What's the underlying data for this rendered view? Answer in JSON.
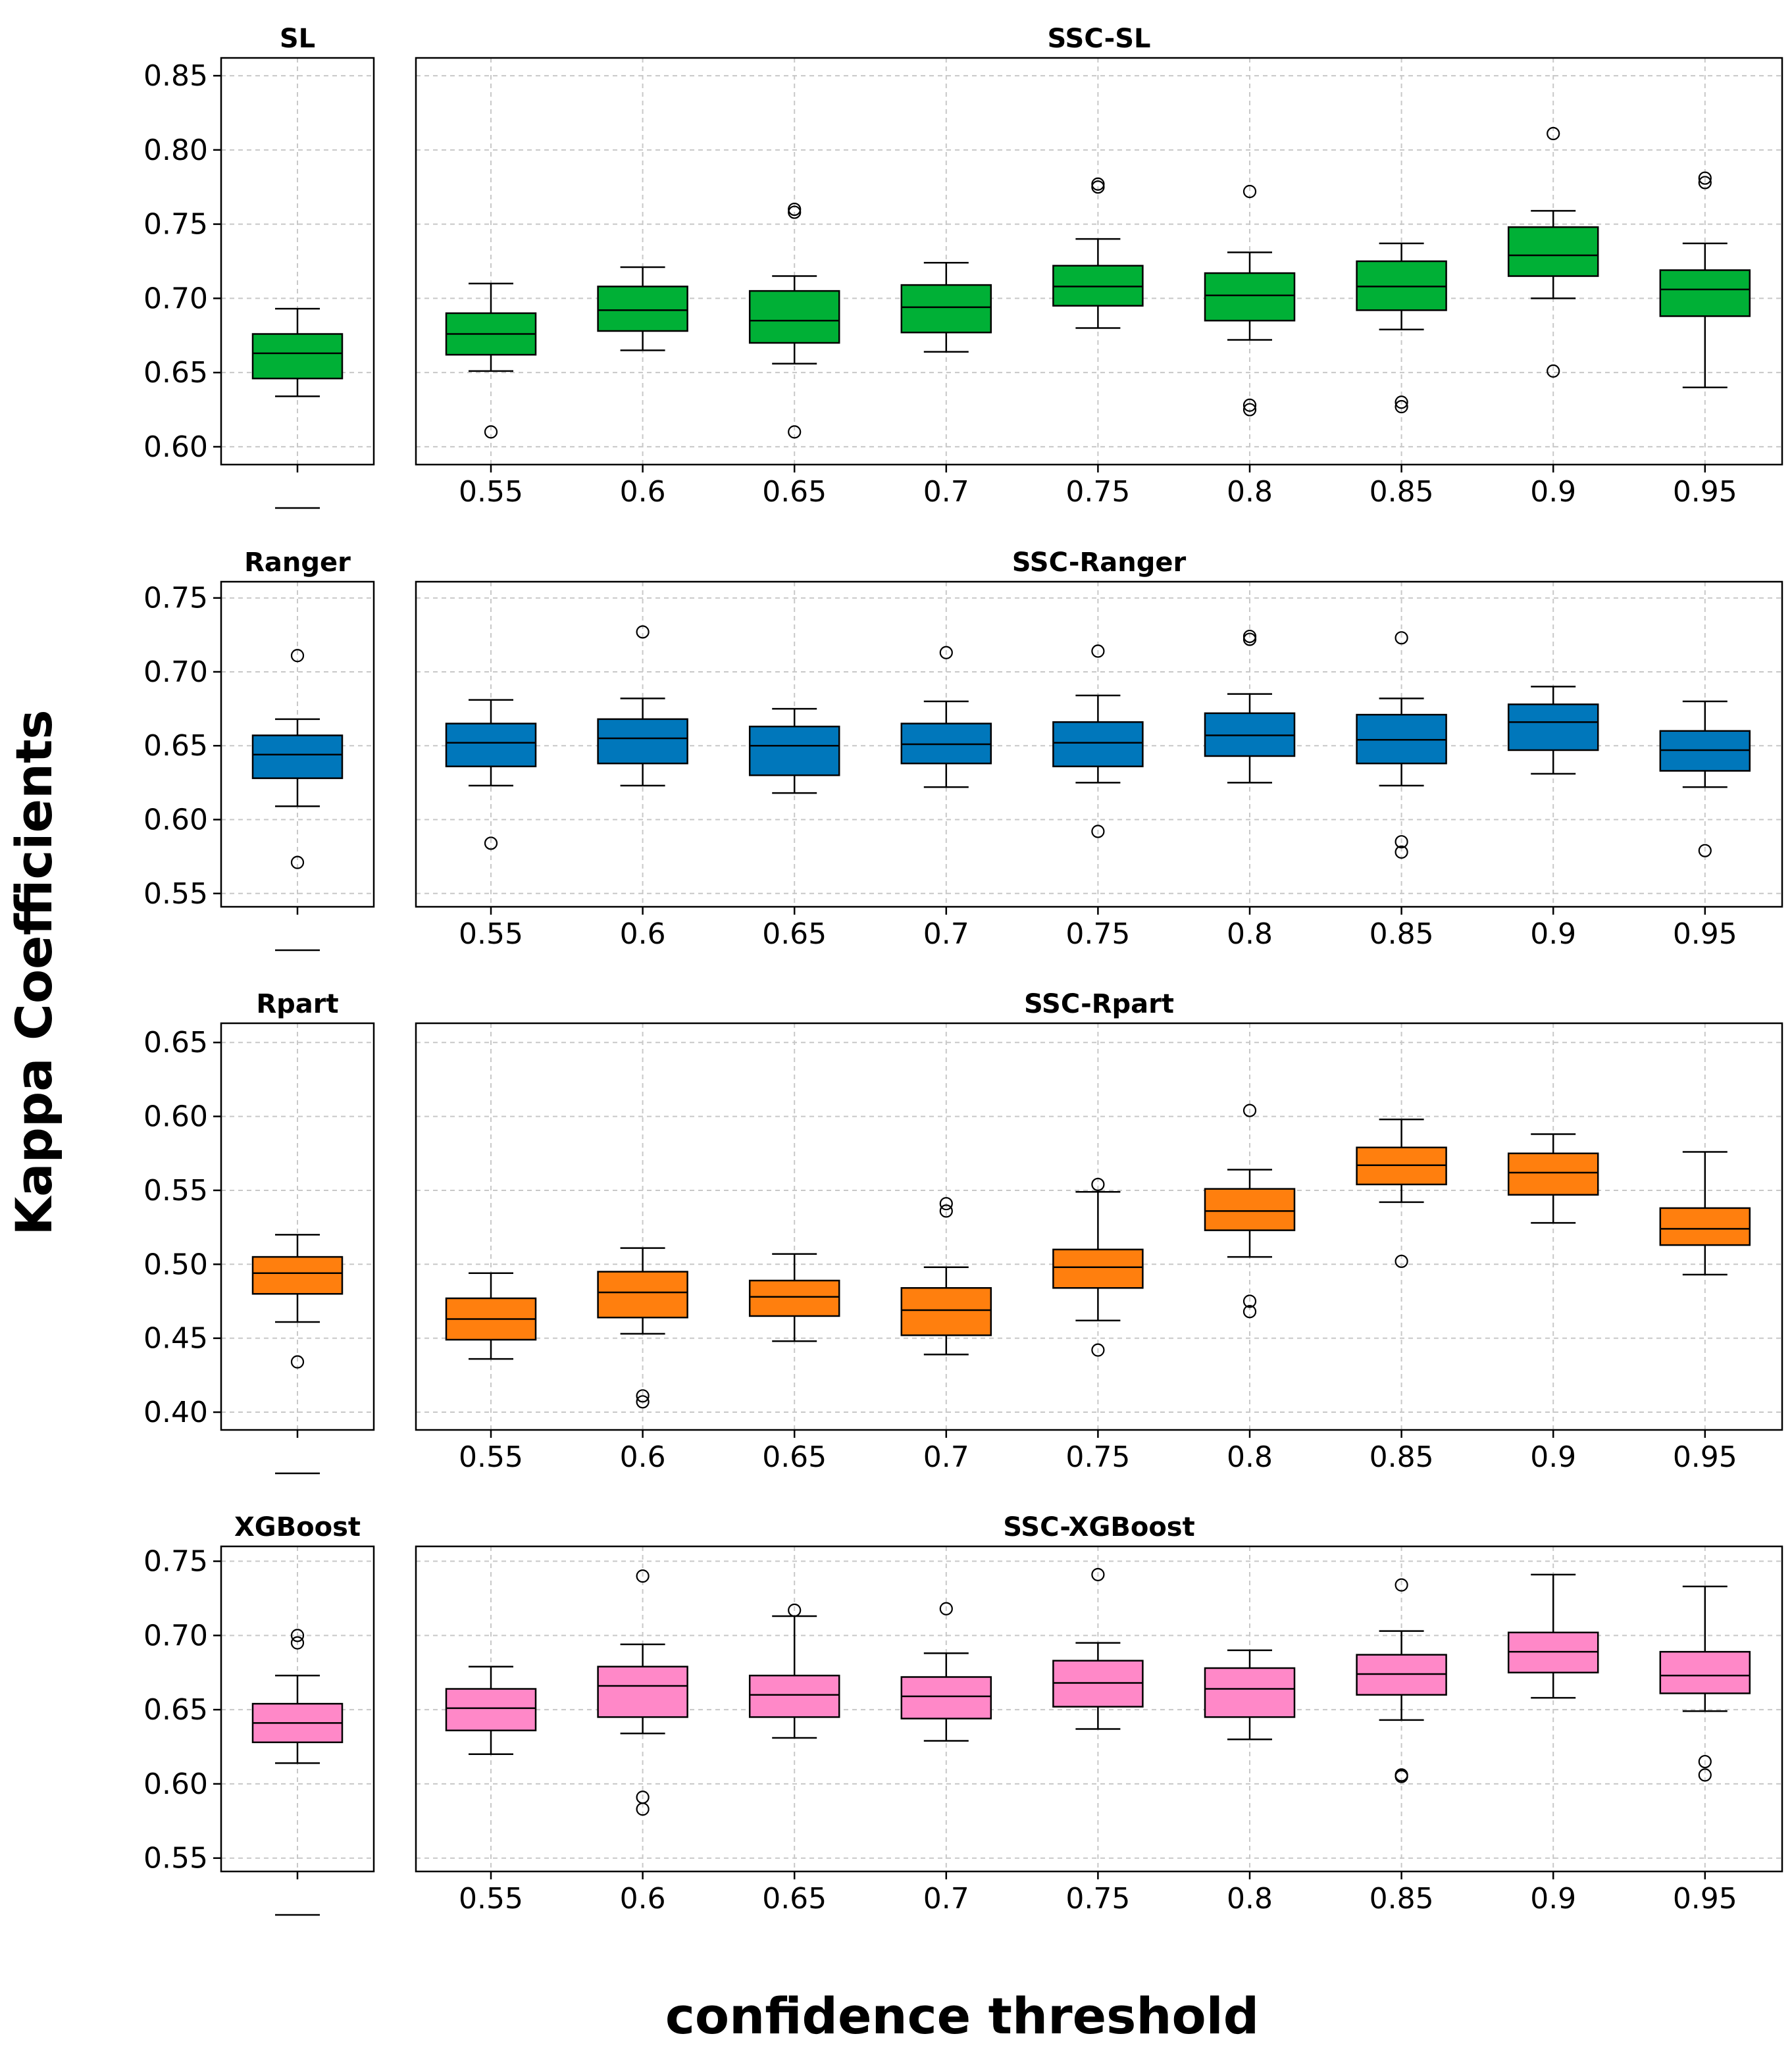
{
  "figure": {
    "ylabel": "Kappa Coefficients",
    "xlabel": "confidence threshold"
  },
  "chart_data": [
    {
      "type": "box",
      "row": 1,
      "left_title": "SL",
      "right_title": "SSC-SL",
      "color": "#00b036",
      "ylim": [
        0.588,
        0.862
      ],
      "yticks": [
        0.6,
        0.65,
        0.7,
        0.75,
        0.8,
        0.85
      ],
      "ytick_labels": [
        "0.60",
        "0.65",
        "0.70",
        "0.75",
        "0.80",
        "0.85"
      ],
      "baseline": {
        "q1": 0.646,
        "median": 0.663,
        "q3": 0.676,
        "whislo": 0.634,
        "whishi": 0.693,
        "fliers": []
      },
      "categories": [
        "0.55",
        "0.6",
        "0.65",
        "0.7",
        "0.75",
        "0.8",
        "0.85",
        "0.9",
        "0.95"
      ],
      "boxes": [
        {
          "q1": 0.662,
          "median": 0.676,
          "q3": 0.69,
          "whislo": 0.651,
          "whishi": 0.71,
          "fliers": [
            0.61
          ]
        },
        {
          "q1": 0.678,
          "median": 0.692,
          "q3": 0.708,
          "whislo": 0.665,
          "whishi": 0.721,
          "fliers": []
        },
        {
          "q1": 0.67,
          "median": 0.685,
          "q3": 0.705,
          "whislo": 0.656,
          "whishi": 0.715,
          "fliers": [
            0.76,
            0.758,
            0.61
          ]
        },
        {
          "q1": 0.677,
          "median": 0.694,
          "q3": 0.709,
          "whislo": 0.664,
          "whishi": 0.724,
          "fliers": []
        },
        {
          "q1": 0.695,
          "median": 0.708,
          "q3": 0.722,
          "whislo": 0.68,
          "whishi": 0.74,
          "fliers": [
            0.777,
            0.775
          ]
        },
        {
          "q1": 0.685,
          "median": 0.702,
          "q3": 0.717,
          "whislo": 0.672,
          "whishi": 0.731,
          "fliers": [
            0.772,
            0.628,
            0.625
          ]
        },
        {
          "q1": 0.692,
          "median": 0.708,
          "q3": 0.725,
          "whislo": 0.679,
          "whishi": 0.737,
          "fliers": [
            0.63,
            0.627
          ]
        },
        {
          "q1": 0.715,
          "median": 0.729,
          "q3": 0.748,
          "whislo": 0.7,
          "whishi": 0.759,
          "fliers": [
            0.811,
            0.651
          ]
        },
        {
          "q1": 0.688,
          "median": 0.706,
          "q3": 0.719,
          "whislo": 0.64,
          "whishi": 0.737,
          "fliers": [
            0.781,
            0.778
          ]
        }
      ]
    },
    {
      "type": "box",
      "row": 2,
      "left_title": "Ranger",
      "right_title": "SSC-Ranger",
      "color": "#0077bb",
      "ylim": [
        0.541,
        0.761
      ],
      "yticks": [
        0.55,
        0.6,
        0.65,
        0.7,
        0.75
      ],
      "ytick_labels": [
        "0.55",
        "0.60",
        "0.65",
        "0.70",
        "0.75"
      ],
      "baseline": {
        "q1": 0.628,
        "median": 0.644,
        "q3": 0.657,
        "whislo": 0.609,
        "whishi": 0.668,
        "fliers": [
          0.711,
          0.571
        ]
      },
      "categories": [
        "0.55",
        "0.6",
        "0.65",
        "0.7",
        "0.75",
        "0.8",
        "0.85",
        "0.9",
        "0.95"
      ],
      "boxes": [
        {
          "q1": 0.636,
          "median": 0.652,
          "q3": 0.665,
          "whislo": 0.623,
          "whishi": 0.681,
          "fliers": [
            0.584
          ]
        },
        {
          "q1": 0.638,
          "median": 0.655,
          "q3": 0.668,
          "whislo": 0.623,
          "whishi": 0.682,
          "fliers": [
            0.727
          ]
        },
        {
          "q1": 0.63,
          "median": 0.65,
          "q3": 0.663,
          "whislo": 0.618,
          "whishi": 0.675,
          "fliers": []
        },
        {
          "q1": 0.638,
          "median": 0.651,
          "q3": 0.665,
          "whislo": 0.622,
          "whishi": 0.68,
          "fliers": [
            0.713
          ]
        },
        {
          "q1": 0.636,
          "median": 0.652,
          "q3": 0.666,
          "whislo": 0.625,
          "whishi": 0.684,
          "fliers": [
            0.714,
            0.592
          ]
        },
        {
          "q1": 0.643,
          "median": 0.657,
          "q3": 0.672,
          "whislo": 0.625,
          "whishi": 0.685,
          "fliers": [
            0.724,
            0.722
          ]
        },
        {
          "q1": 0.638,
          "median": 0.654,
          "q3": 0.671,
          "whislo": 0.623,
          "whishi": 0.682,
          "fliers": [
            0.723,
            0.585,
            0.578
          ]
        },
        {
          "q1": 0.647,
          "median": 0.666,
          "q3": 0.678,
          "whislo": 0.631,
          "whishi": 0.69,
          "fliers": []
        },
        {
          "q1": 0.633,
          "median": 0.647,
          "q3": 0.66,
          "whislo": 0.622,
          "whishi": 0.68,
          "fliers": [
            0.579
          ]
        }
      ]
    },
    {
      "type": "box",
      "row": 3,
      "left_title": "Rpart",
      "right_title": "SSC-Rpart",
      "color": "#ff7f0e",
      "ylim": [
        0.388,
        0.663
      ],
      "yticks": [
        0.4,
        0.45,
        0.5,
        0.55,
        0.6,
        0.65
      ],
      "ytick_labels": [
        "0.40",
        "0.45",
        "0.50",
        "0.55",
        "0.60",
        "0.65"
      ],
      "baseline": {
        "q1": 0.48,
        "median": 0.494,
        "q3": 0.505,
        "whislo": 0.461,
        "whishi": 0.52,
        "fliers": [
          0.434
        ]
      },
      "categories": [
        "0.55",
        "0.6",
        "0.65",
        "0.7",
        "0.75",
        "0.8",
        "0.85",
        "0.9",
        "0.95"
      ],
      "boxes": [
        {
          "q1": 0.449,
          "median": 0.463,
          "q3": 0.477,
          "whislo": 0.436,
          "whishi": 0.494,
          "fliers": []
        },
        {
          "q1": 0.464,
          "median": 0.481,
          "q3": 0.495,
          "whislo": 0.453,
          "whishi": 0.511,
          "fliers": [
            0.411,
            0.407
          ]
        },
        {
          "q1": 0.465,
          "median": 0.478,
          "q3": 0.489,
          "whislo": 0.448,
          "whishi": 0.507,
          "fliers": []
        },
        {
          "q1": 0.452,
          "median": 0.469,
          "q3": 0.484,
          "whislo": 0.439,
          "whishi": 0.498,
          "fliers": [
            0.541,
            0.536
          ]
        },
        {
          "q1": 0.484,
          "median": 0.498,
          "q3": 0.51,
          "whislo": 0.462,
          "whishi": 0.549,
          "fliers": [
            0.554,
            0.442
          ]
        },
        {
          "q1": 0.523,
          "median": 0.536,
          "q3": 0.551,
          "whislo": 0.505,
          "whishi": 0.564,
          "fliers": [
            0.604,
            0.475,
            0.468
          ]
        },
        {
          "q1": 0.554,
          "median": 0.567,
          "q3": 0.579,
          "whislo": 0.542,
          "whishi": 0.598,
          "fliers": [
            0.502
          ]
        },
        {
          "q1": 0.547,
          "median": 0.562,
          "q3": 0.575,
          "whislo": 0.528,
          "whishi": 0.588,
          "fliers": []
        },
        {
          "q1": 0.513,
          "median": 0.524,
          "q3": 0.538,
          "whislo": 0.493,
          "whishi": 0.576,
          "fliers": []
        }
      ]
    },
    {
      "type": "box",
      "row": 4,
      "left_title": "XGBoost",
      "right_title": "SSC-XGBoost",
      "color": "#ff88c8",
      "ylim": [
        0.541,
        0.76
      ],
      "yticks": [
        0.55,
        0.6,
        0.65,
        0.7,
        0.75
      ],
      "ytick_labels": [
        "0.55",
        "0.60",
        "0.65",
        "0.70",
        "0.75"
      ],
      "baseline": {
        "q1": 0.628,
        "median": 0.641,
        "q3": 0.654,
        "whislo": 0.614,
        "whishi": 0.673,
        "fliers": [
          0.7,
          0.695
        ]
      },
      "categories": [
        "0.55",
        "0.6",
        "0.65",
        "0.7",
        "0.75",
        "0.8",
        "0.85",
        "0.9",
        "0.95"
      ],
      "boxes": [
        {
          "q1": 0.636,
          "median": 0.651,
          "q3": 0.664,
          "whislo": 0.62,
          "whishi": 0.679,
          "fliers": []
        },
        {
          "q1": 0.645,
          "median": 0.666,
          "q3": 0.679,
          "whislo": 0.634,
          "whishi": 0.694,
          "fliers": [
            0.74,
            0.591,
            0.583
          ]
        },
        {
          "q1": 0.645,
          "median": 0.66,
          "q3": 0.673,
          "whislo": 0.631,
          "whishi": 0.713,
          "fliers": [
            0.717
          ]
        },
        {
          "q1": 0.644,
          "median": 0.659,
          "q3": 0.672,
          "whislo": 0.629,
          "whishi": 0.688,
          "fliers": [
            0.718
          ]
        },
        {
          "q1": 0.652,
          "median": 0.668,
          "q3": 0.683,
          "whislo": 0.637,
          "whishi": 0.695,
          "fliers": [
            0.741
          ]
        },
        {
          "q1": 0.645,
          "median": 0.664,
          "q3": 0.678,
          "whislo": 0.63,
          "whishi": 0.69,
          "fliers": []
        },
        {
          "q1": 0.66,
          "median": 0.674,
          "q3": 0.687,
          "whislo": 0.643,
          "whishi": 0.703,
          "fliers": [
            0.734,
            0.606,
            0.605
          ]
        },
        {
          "q1": 0.675,
          "median": 0.689,
          "q3": 0.702,
          "whislo": 0.658,
          "whishi": 0.741,
          "fliers": []
        },
        {
          "q1": 0.661,
          "median": 0.673,
          "q3": 0.689,
          "whislo": 0.649,
          "whishi": 0.733,
          "fliers": [
            0.615,
            0.606
          ]
        }
      ]
    }
  ]
}
